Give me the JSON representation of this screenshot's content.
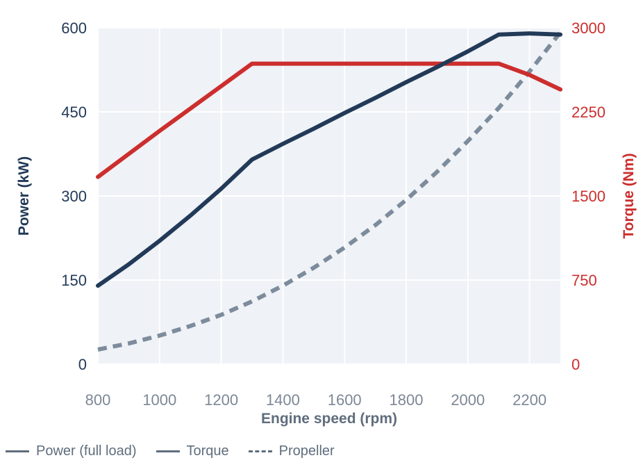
{
  "chart_data": {
    "type": "line",
    "xlabel": "Engine speed (rpm)",
    "ylabel_left": "Power (kW)",
    "ylabel_right": "Torque (Nm)",
    "xlim": [
      800,
      2300
    ],
    "ylim_left": [
      0,
      600
    ],
    "ylim_right": [
      0,
      3000
    ],
    "x_ticks": [
      800,
      1000,
      1200,
      1400,
      1600,
      1800,
      2000,
      2200
    ],
    "y_left_ticks": [
      0,
      150,
      300,
      450,
      600
    ],
    "y_right_ticks": [
      0,
      750,
      1500,
      2250,
      3000
    ],
    "grid": true,
    "legend_position": "bottom",
    "series": [
      {
        "name": "Power (full load)",
        "axis": "left",
        "color": "#223a58",
        "style": "solid",
        "x": [
          800,
          900,
          1000,
          1100,
          1200,
          1300,
          1400,
          1500,
          1600,
          1700,
          1800,
          1900,
          2000,
          2100,
          2200,
          2300
        ],
        "y": [
          140,
          178,
          220,
          265,
          313,
          365,
          393,
          420,
          448,
          475,
          503,
          530,
          558,
          588,
          590,
          588
        ]
      },
      {
        "name": "Torque",
        "axis": "right",
        "color": "#cc2e2e",
        "style": "solid",
        "x": [
          800,
          900,
          1000,
          1100,
          1200,
          1300,
          1400,
          1600,
          1800,
          2000,
          2100,
          2200,
          2300
        ],
        "y": [
          1670,
          1875,
          2080,
          2280,
          2480,
          2680,
          2680,
          2680,
          2680,
          2680,
          2680,
          2580,
          2450
        ]
      },
      {
        "name": "Propeller",
        "axis": "left",
        "color": "#7d8c9c",
        "style": "dashed",
        "x": [
          800,
          900,
          1000,
          1100,
          1200,
          1300,
          1400,
          1500,
          1600,
          1700,
          1800,
          1900,
          2000,
          2100,
          2200,
          2300
        ],
        "y": [
          26,
          37,
          51,
          68,
          88,
          112,
          140,
          172,
          208,
          248,
          293,
          343,
          398,
          457,
          522,
          592
        ]
      }
    ]
  },
  "colors": {
    "left_axis": "#223a58",
    "right_axis": "#cc2e2e",
    "x_ticks": "#7d8796",
    "x_title": "#5f6d7d",
    "plot_bg": "#eff2f6",
    "grid": "#ffffff"
  }
}
